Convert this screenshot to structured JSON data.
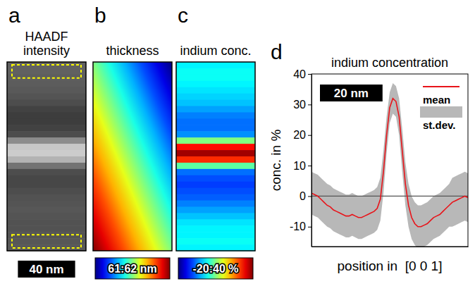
{
  "image_panels": [
    {
      "letter": "a",
      "title": "HAADF intensity",
      "kind": "intensity",
      "rows": [
        0.38,
        0.38,
        0.37,
        0.36,
        0.35,
        0.33,
        0.3,
        0.26,
        0.24,
        0.24,
        0.26,
        0.3,
        0.55,
        0.78,
        0.8,
        0.7,
        0.45,
        0.3,
        0.28,
        0.28,
        0.3,
        0.32,
        0.33,
        0.34,
        0.33,
        0.32,
        0.32,
        0.33,
        0.34,
        0.35
      ],
      "color_range": [
        0,
        1
      ],
      "regions": [
        [
          0,
          2
        ],
        [
          27,
          29
        ]
      ],
      "region_color": "#ffff00"
    },
    {
      "letter": "b",
      "title": "thickness",
      "kind": "gradient",
      "colorbar": {
        "range": [
          61,
          62
        ],
        "label": "61:62 nm"
      }
    },
    {
      "letter": "c",
      "title": "indium conc.",
      "kind": "map",
      "rows": [
        2,
        3,
        3,
        2,
        1,
        0,
        -1,
        -3,
        -5,
        -6,
        -6,
        -4,
        10,
        32,
        38,
        30,
        8,
        -6,
        -8,
        -9,
        -8,
        -7,
        -5,
        -3,
        -1,
        1,
        2,
        2,
        3,
        2
      ],
      "colorbar": {
        "range": [
          -20,
          40
        ],
        "label": "-20:40 %"
      }
    }
  ],
  "scale_bar": {
    "label": "40 nm",
    "length": 40,
    "image_height": 132
  },
  "chart_data": {
    "type": "line",
    "letter": "d",
    "title": "indium concentration",
    "x_label": "position in  [0 0 1]",
    "y_label": "conc. in %",
    "x": [
      0,
      1,
      2,
      3,
      4,
      5,
      6,
      7,
      8,
      9,
      10,
      11,
      12,
      13,
      14,
      15,
      16,
      17,
      18,
      19,
      20,
      21,
      22,
      23,
      24,
      25,
      26,
      27,
      28,
      29,
      30,
      31,
      32,
      33,
      34,
      35,
      36,
      37,
      38,
      39,
      40,
      41,
      42,
      43,
      44,
      45,
      46,
      47,
      48,
      49,
      50
    ],
    "xlim": [
      0,
      50
    ],
    "ylim": [
      -16.5,
      40
    ],
    "yticks": [
      -10,
      0,
      10,
      20,
      30,
      40
    ],
    "tick_labels": "y",
    "hline": 0,
    "legend": "top-right",
    "scale_bar": {
      "label": "20 nm",
      "length": 20
    },
    "series": [
      {
        "name": "mean",
        "type": "line",
        "color": "#e8141a",
        "values": [
          1,
          0.5,
          0,
          -1,
          -2,
          -3,
          -3.5,
          -4.5,
          -5,
          -5.5,
          -6,
          -6.5,
          -6.5,
          -6,
          -6.5,
          -7,
          -7,
          -6.5,
          -6,
          -5.5,
          -5,
          -4,
          -1,
          8,
          20,
          29,
          32,
          31,
          26,
          15,
          4,
          -3,
          -7,
          -9,
          -10,
          -10,
          -9.5,
          -9,
          -8,
          -7,
          -6.5,
          -6,
          -5,
          -4,
          -3,
          -2,
          -1.5,
          -1,
          -0.5,
          0,
          -0.5
        ]
      },
      {
        "name": "st.dev.",
        "type": "band",
        "color": "#b8b8b8",
        "values": [
          7,
          7,
          7,
          7,
          7,
          7,
          7,
          7,
          7,
          7,
          7,
          7,
          7,
          7,
          7,
          7,
          7,
          7,
          7,
          7,
          7,
          7,
          7,
          7,
          6,
          5,
          5,
          5,
          6,
          7,
          7,
          7,
          7,
          7,
          7,
          7,
          7,
          7,
          7,
          7,
          7,
          7,
          7,
          7,
          7,
          8,
          8,
          8,
          8,
          8,
          8
        ]
      }
    ]
  }
}
